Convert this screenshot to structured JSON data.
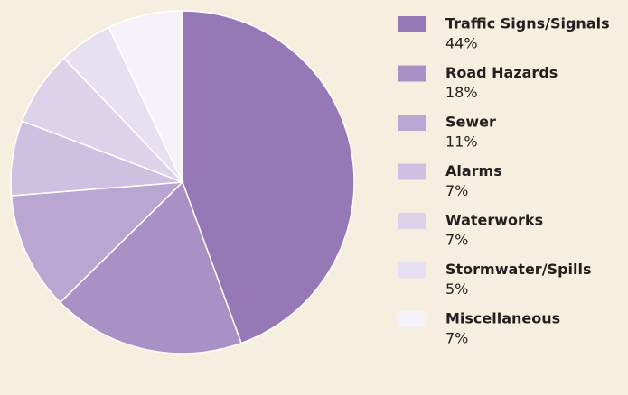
{
  "chart_data": {
    "type": "pie",
    "categories": [
      "Traffic Signs/Signals",
      "Road Hazards",
      "Sewer",
      "Alarms",
      "Waterworks",
      "Stormwater/Spills",
      "Miscellaneous"
    ],
    "values": [
      44,
      18,
      11,
      7,
      7,
      5,
      7
    ],
    "value_labels": [
      "44%",
      "18%",
      "11%",
      "7%",
      "7%",
      "5%",
      "7%"
    ],
    "colors": [
      "#9778b6",
      "#a991c5",
      "#b9a6d1",
      "#cdc0e0",
      "#dcd3ea",
      "#e6e0f0",
      "#f5f2f9"
    ]
  }
}
